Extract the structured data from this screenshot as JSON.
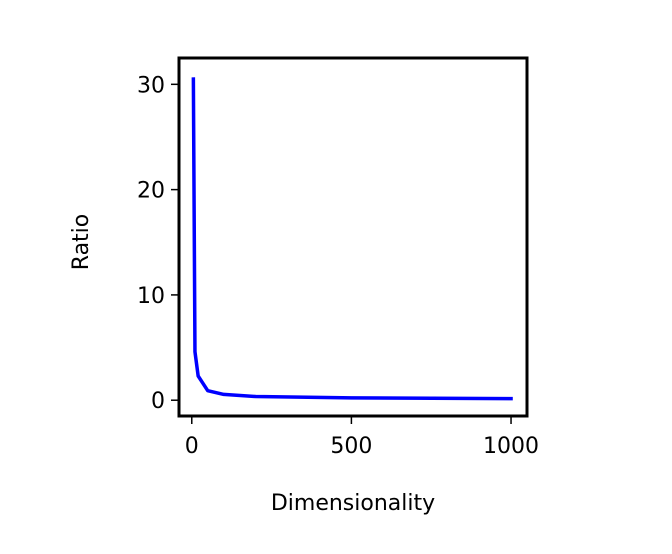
{
  "chart_data": {
    "type": "line",
    "title": "",
    "xlabel": "Dimensionality",
    "ylabel": "Ratio",
    "xlim": [
      -40,
      1050
    ],
    "ylim": [
      -1.5,
      32.5
    ],
    "x_ticks": [
      0,
      500,
      1000
    ],
    "y_ticks": [
      0,
      10,
      20,
      30
    ],
    "x_tick_labels": [
      "0",
      "500",
      "1000"
    ],
    "y_tick_labels": [
      "0",
      "10",
      "20",
      "30"
    ],
    "grid": false,
    "legend": "none",
    "series": [
      {
        "color": "#0000ff",
        "x": [
          5,
          10,
          20,
          50,
          100,
          200,
          500,
          1000
        ],
        "y": [
          30.5,
          4.6,
          2.3,
          0.9,
          0.55,
          0.35,
          0.22,
          0.15
        ]
      }
    ]
  }
}
